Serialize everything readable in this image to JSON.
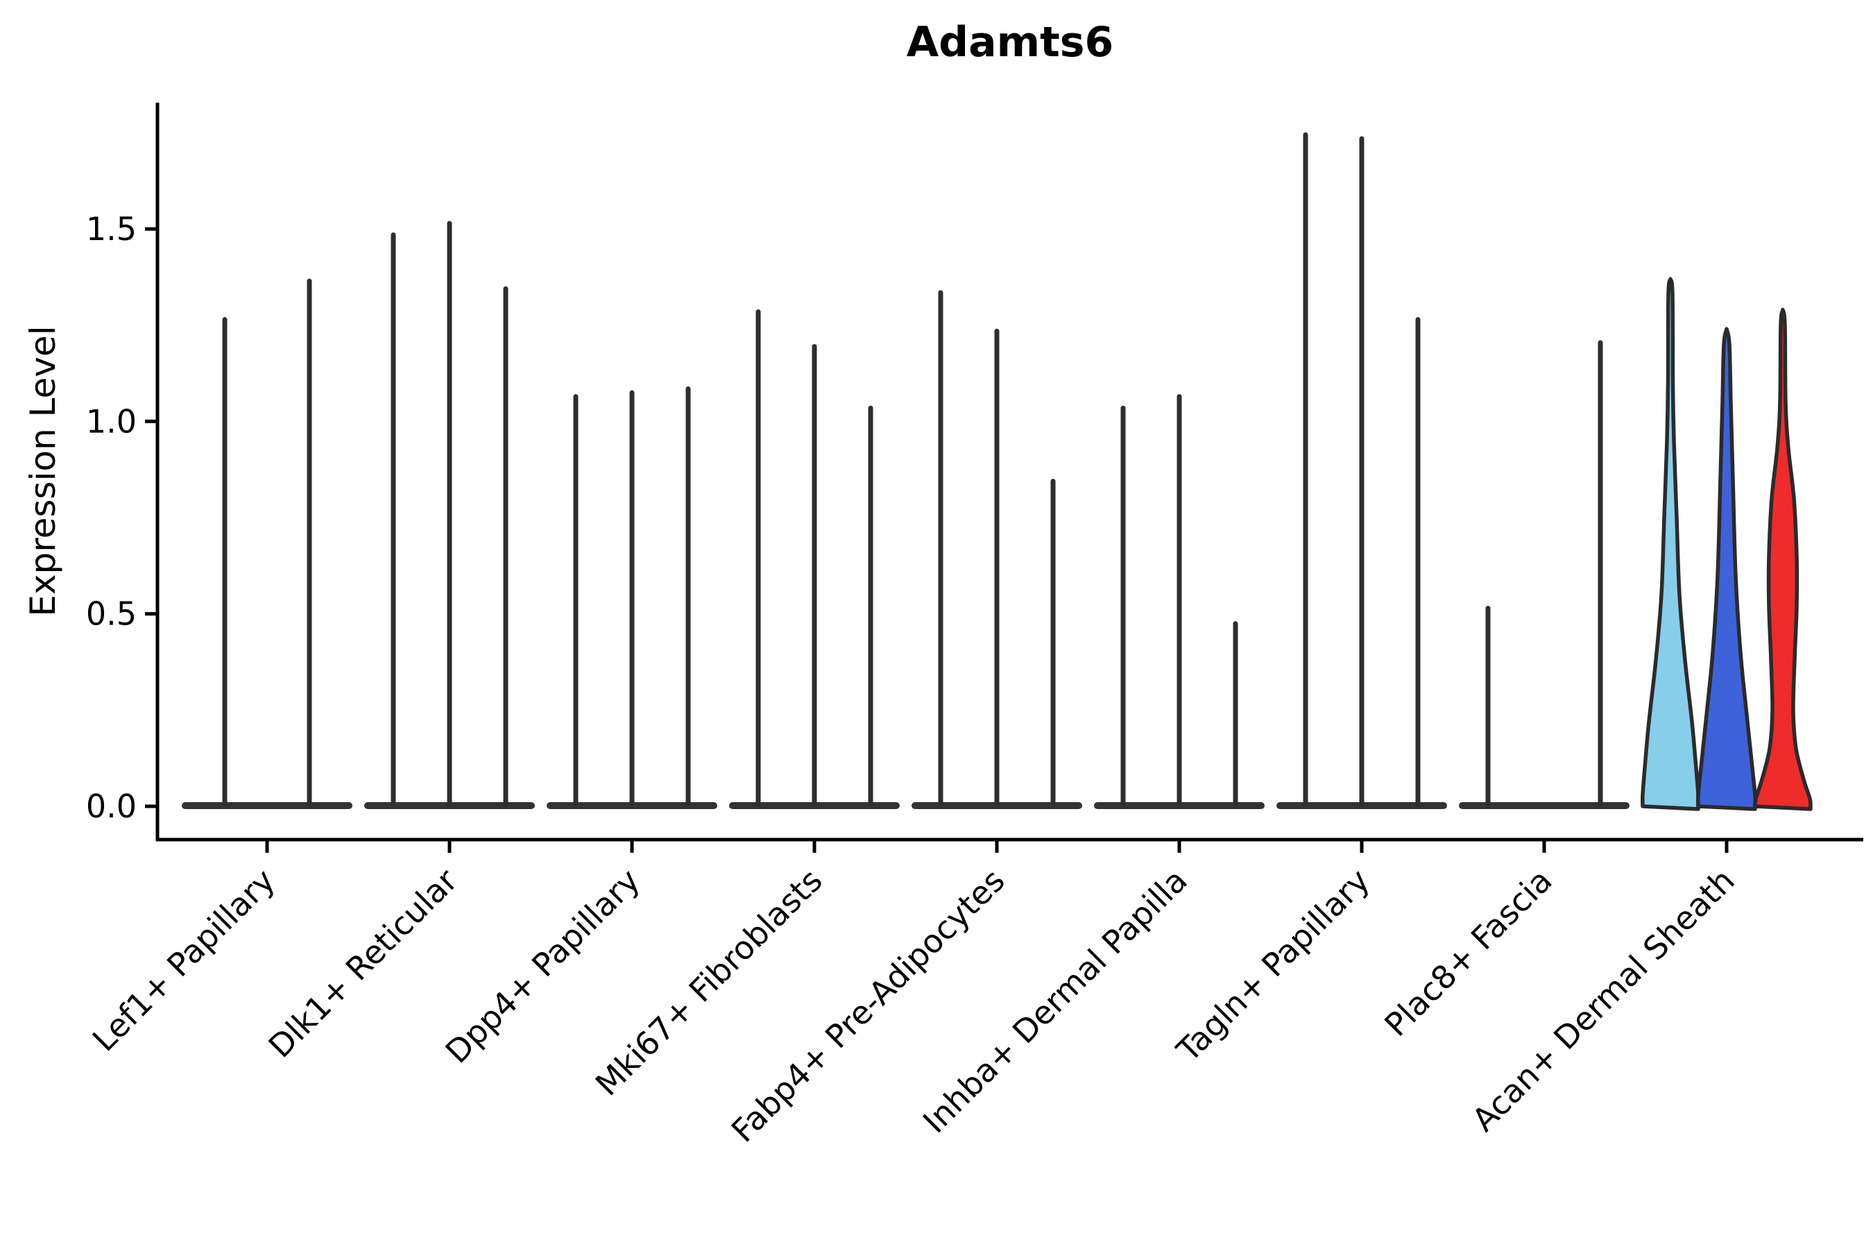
{
  "chart_data": {
    "type": "violin",
    "title": "Adamts6",
    "ylabel": "Expression Level",
    "ytick_labels": [
      "0.0",
      "0.5",
      "1.0",
      "1.5"
    ],
    "ytick_values": [
      0.0,
      0.5,
      1.0,
      1.5
    ],
    "ylim": [
      -0.09,
      1.83
    ],
    "grid": false,
    "legend_position": "none",
    "categories": [
      "Lef1+ Papillary",
      "Dlk1+ Reticular",
      "Dpp4+ Papillary",
      "Mki67+ Fibroblasts",
      "Fabp4+ Pre-Adipocytes",
      "Inhba+ Dermal Papilla",
      "Tagln+ Papillary",
      "Plac8+ Fascia",
      "Acan+ Dermal Sheath"
    ],
    "groups": [
      {
        "label": "Lef1+ Papillary",
        "violins": [
          {
            "max": 1.27
          },
          {
            "max": 1.37
          }
        ]
      },
      {
        "label": "Dlk1+ Reticular",
        "violins": [
          {
            "max": 1.49
          },
          {
            "max": 1.52
          },
          {
            "max": 1.35
          }
        ]
      },
      {
        "label": "Dpp4+ Papillary",
        "violins": [
          {
            "max": 1.07
          },
          {
            "max": 1.08
          },
          {
            "max": 1.09
          }
        ]
      },
      {
        "label": "Mki67+ Fibroblasts",
        "violins": [
          {
            "max": 1.29
          },
          {
            "max": 1.2
          },
          {
            "max": 1.04
          }
        ]
      },
      {
        "label": "Fabp4+ Pre-Adipocytes",
        "violins": [
          {
            "max": 1.34
          },
          {
            "max": 1.24
          },
          {
            "max": 0.85
          }
        ]
      },
      {
        "label": "Inhba+ Dermal Papilla",
        "violins": [
          {
            "max": 1.04
          },
          {
            "max": 1.07
          },
          {
            "max": 0.48
          }
        ]
      },
      {
        "label": "Tagln+ Papillary",
        "violins": [
          {
            "max": 1.75
          },
          {
            "max": 1.74
          },
          {
            "max": 1.27
          }
        ]
      },
      {
        "label": "Plac8+ Fascia",
        "violins": [
          {
            "max": 0.52
          },
          {
            "max": 0.0
          },
          {
            "max": 1.21
          }
        ]
      },
      {
        "label": "Acan+ Dermal Sheath",
        "violins": [
          {
            "max": 1.37,
            "fill": "#87CEEB",
            "profile": [
              [
                1.37,
                0
              ],
              [
                1.33,
                3
              ],
              [
                1.1,
                3.5
              ],
              [
                0.95,
                5
              ],
              [
                0.75,
                9
              ],
              [
                0.55,
                13
              ],
              [
                0.38,
                21
              ],
              [
                0.22,
                31
              ],
              [
                0.1,
                37
              ],
              [
                0.03,
                40
              ],
              [
                0,
                40
              ]
            ]
          },
          {
            "max": 1.24,
            "fill": "#3E62D9",
            "profile": [
              [
                1.24,
                0
              ],
              [
                1.2,
                4
              ],
              [
                1.05,
                6
              ],
              [
                0.85,
                9
              ],
              [
                0.6,
                13
              ],
              [
                0.4,
                20
              ],
              [
                0.22,
                30
              ],
              [
                0.1,
                37
              ],
              [
                0.03,
                41
              ],
              [
                0,
                41
              ]
            ]
          },
          {
            "max": 1.29,
            "fill": "#EF2B2B",
            "profile": [
              [
                1.29,
                0
              ],
              [
                1.25,
                3
              ],
              [
                1.05,
                4
              ],
              [
                0.93,
                8
              ],
              [
                0.8,
                16
              ],
              [
                0.65,
                20
              ],
              [
                0.52,
                20
              ],
              [
                0.38,
                17
              ],
              [
                0.25,
                15
              ],
              [
                0.15,
                19
              ],
              [
                0.07,
                30
              ],
              [
                0.02,
                39
              ],
              [
                0,
                40
              ]
            ]
          }
        ]
      }
    ],
    "colors": {
      "spike": "#2E2E2E",
      "base_bar": "#333333",
      "violin_outline": "#2B2B2B",
      "axis": "#000000",
      "split_fills": [
        "#87CEEB",
        "#3E62D9",
        "#EF2B2B"
      ]
    }
  }
}
